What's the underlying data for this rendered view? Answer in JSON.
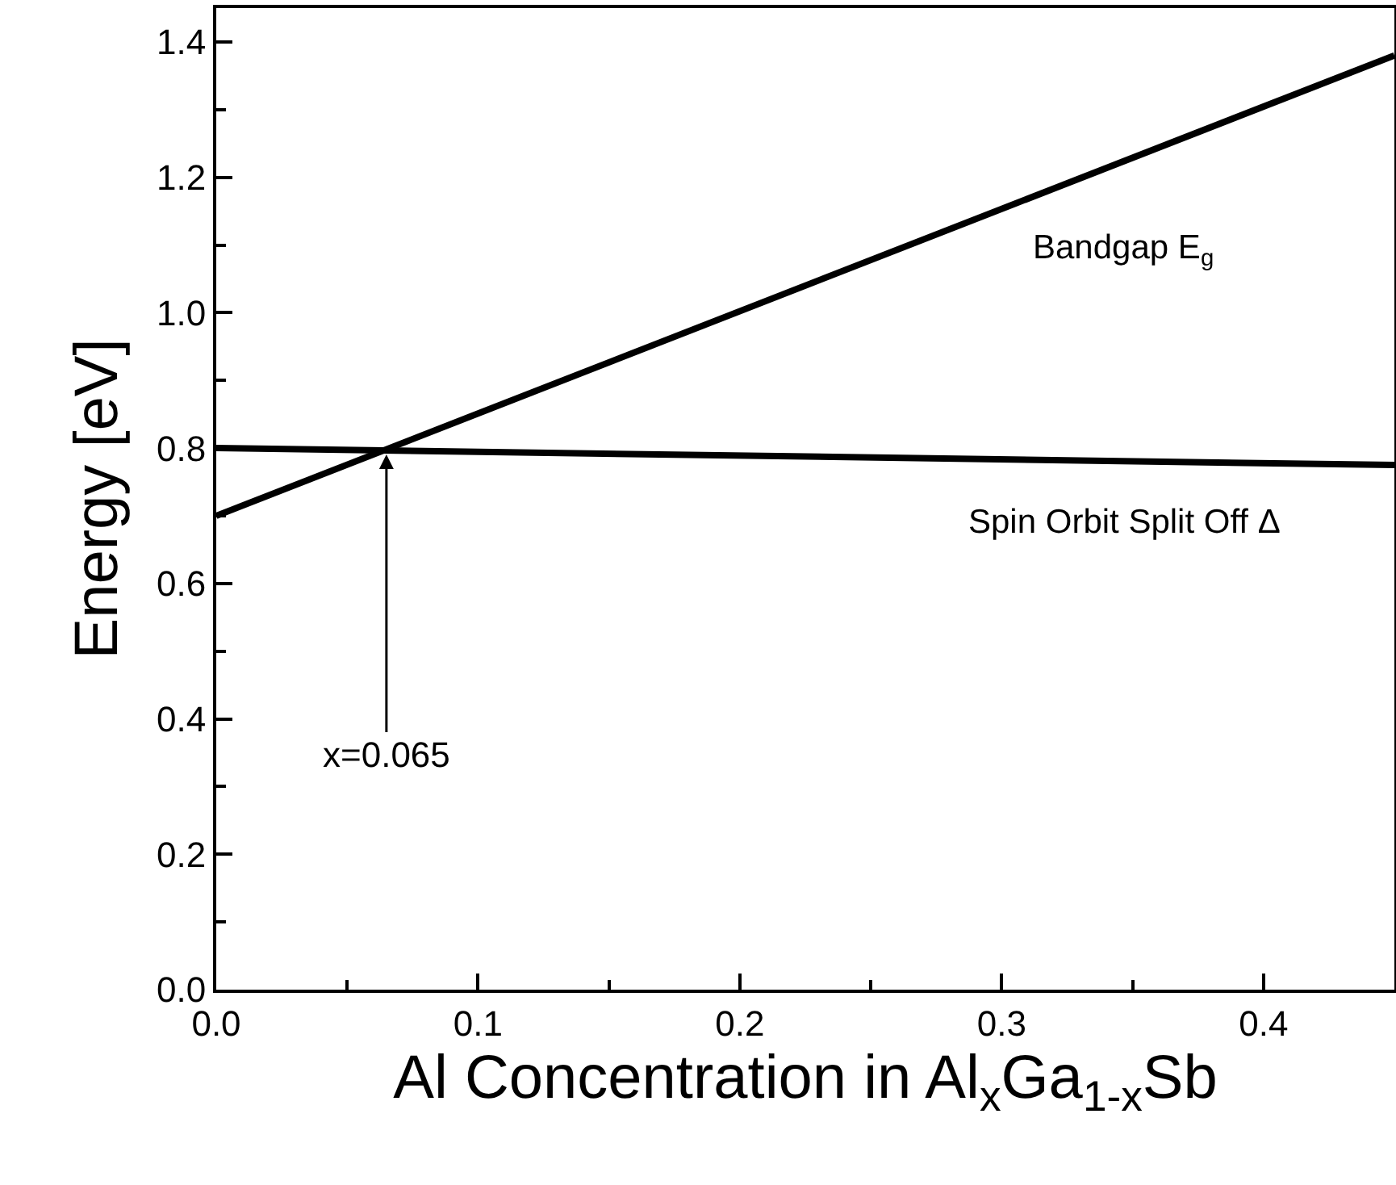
{
  "chart_data": {
    "type": "line",
    "xlabel": "Al Concentration in Al$_{x}$Ga$_{1-x}$Sb",
    "ylabel": "Energy [eV]",
    "x": [
      0,
      0.45
    ],
    "series": [
      {
        "name": "Bandgap E$_{g}$",
        "color": "#000000",
        "values": [
          0.7,
          1.38
        ]
      },
      {
        "name": "Spin Orbit Split Off Δ",
        "color": "#000000",
        "values": [
          0.8,
          0.775
        ]
      }
    ],
    "annotations": [
      {
        "text": "x=0.065",
        "x": 0.065,
        "y": 0.8
      }
    ],
    "xlim": [
      0,
      0.45
    ],
    "xticks": [
      {
        "value": 0,
        "label": "0.0"
      },
      {
        "value": 0.1,
        "label": "0.1"
      },
      {
        "value": 0.2,
        "label": "0.2"
      },
      {
        "value": 0.3,
        "label": "0.3"
      },
      {
        "value": 0.4,
        "label": "0.4"
      }
    ],
    "ylim": [
      0,
      1.45
    ],
    "yticks": [
      {
        "value": 0,
        "label": "0.0"
      },
      {
        "value": 0.2,
        "label": "0.2"
      },
      {
        "value": 0.4,
        "label": "0.4"
      },
      {
        "value": 0.6,
        "label": "0.6"
      },
      {
        "value": 0.8,
        "label": "0.8"
      },
      {
        "value": 1.0,
        "label": "1.0"
      },
      {
        "value": 1.2,
        "label": "1.2"
      },
      {
        "value": 1.4,
        "label": "1.4"
      }
    ],
    "grid": false,
    "legend": false,
    "marker": "none",
    "line_style": "solid"
  }
}
